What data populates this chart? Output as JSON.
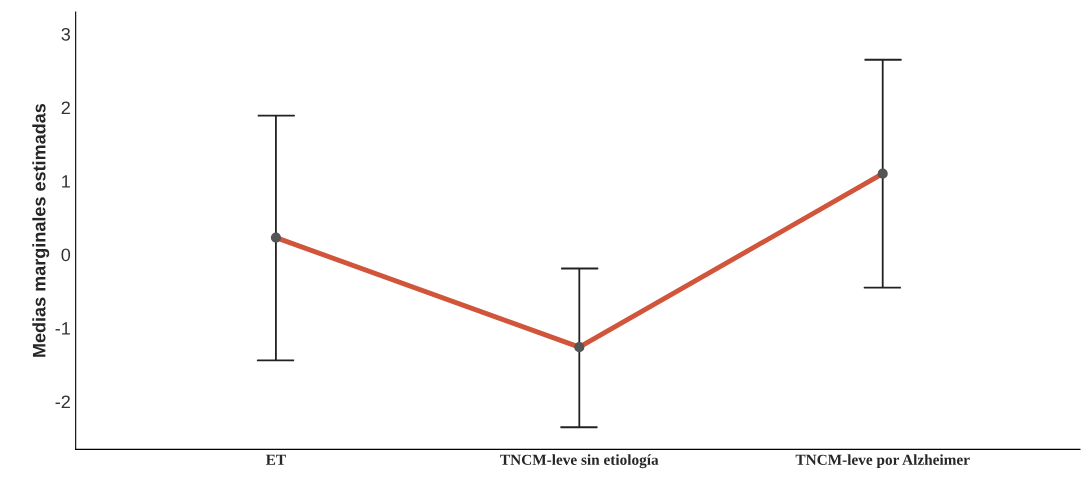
{
  "chart_data": {
    "type": "line",
    "ylabel": "Medias marginales estimadas",
    "categories": [
      "ET",
      "TNCM-leve sin etiología",
      "TNCM-leve por Alzheimer"
    ],
    "color": "#d0553a",
    "values": [
      0.23,
      -1.26,
      1.1
    ],
    "errors": [
      [
        -1.44,
        1.89
      ],
      [
        -2.35,
        -0.19
      ],
      [
        -0.45,
        2.65
      ]
    ],
    "ylim": [
      -2.65,
      3.3
    ],
    "yticks": [
      3,
      2,
      1,
      0,
      {
        "value": -1,
        "label": "-1"
      },
      {
        "value": -2,
        "label": "-2"
      }
    ],
    "marker": "circle",
    "grid": false,
    "legend": false
  }
}
